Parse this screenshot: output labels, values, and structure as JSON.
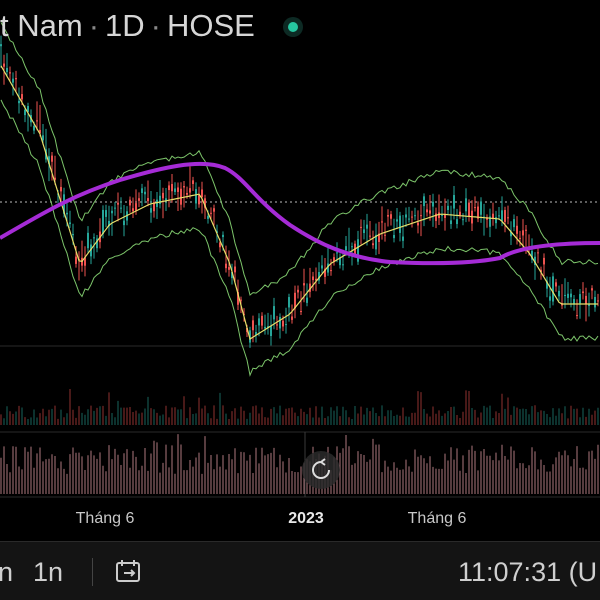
{
  "header": {
    "symbol": "t Nam",
    "interval": "1D",
    "exchange": "HOSE"
  },
  "x_axis": {
    "labels": [
      "Tháng 6",
      "2023",
      "Tháng 6"
    ]
  },
  "toolbar": {
    "left": "n",
    "range": "1n",
    "clock": "11:07:31 (U"
  }
}
